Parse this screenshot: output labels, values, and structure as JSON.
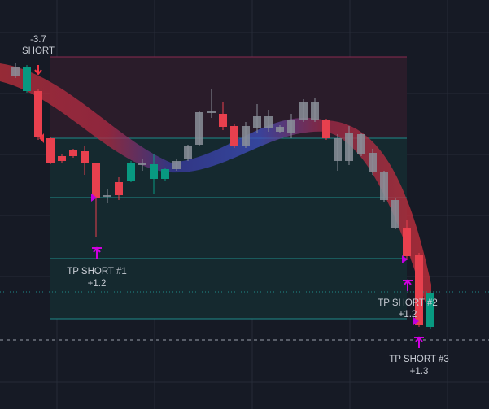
{
  "signals": [
    {
      "value": "-3.7",
      "label": "SHORT"
    },
    {
      "label": "TP SHORT #1",
      "value": "+1.2"
    },
    {
      "label": "TP SHORT #2",
      "value": "+1.2"
    },
    {
      "label": "TP SHORT #3",
      "value": "+1.3"
    }
  ]
}
